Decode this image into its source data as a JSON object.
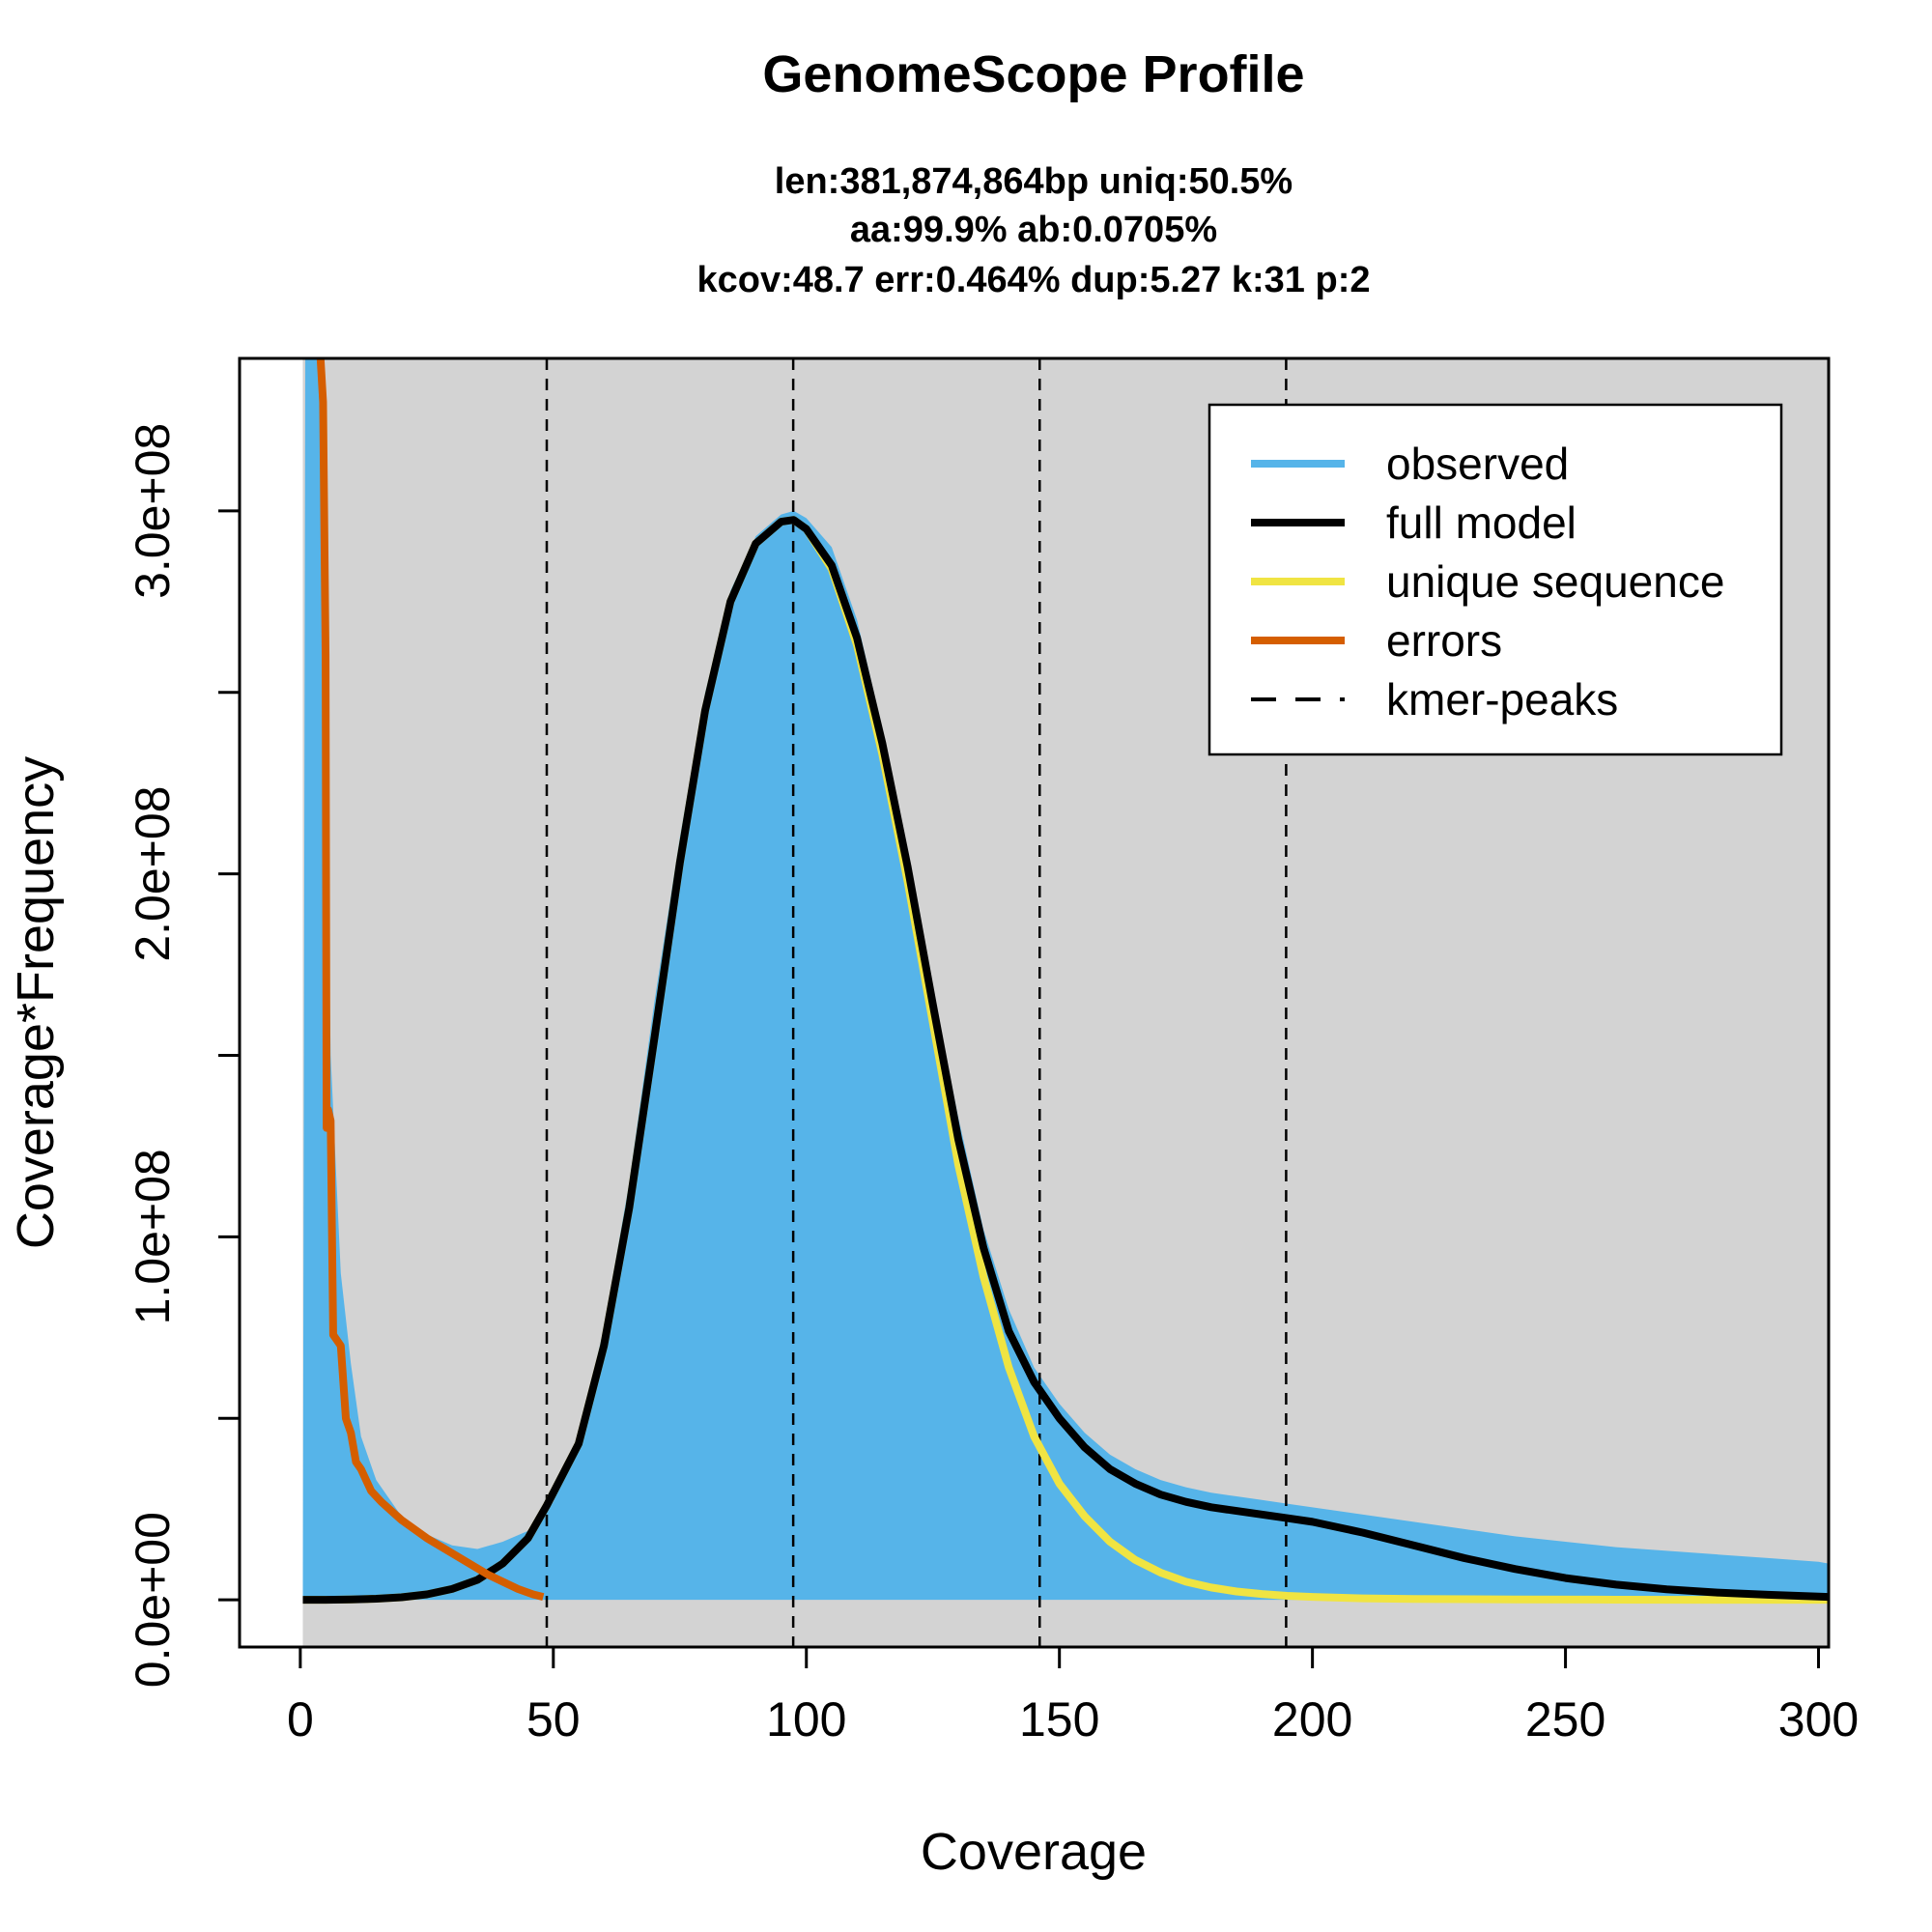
{
  "chart_data": {
    "type": "area",
    "title": "GenomeScope Profile",
    "subtitle_lines": [
      "len:381,874,864bp uniq:50.5%",
      "aa:99.9% ab:0.0705%",
      "kcov:48.7 err:0.464%  dup:5.27  k:31 p:2"
    ],
    "xlabel": "Coverage",
    "ylabel": "Coverage*Frequency",
    "xlim": [
      -12,
      302
    ],
    "ylim": [
      -13000000,
      342000000
    ],
    "x_ticks": [
      0,
      50,
      100,
      150,
      200,
      250,
      300
    ],
    "x_tick_labels": [
      "0",
      "50",
      "100",
      "150",
      "200",
      "250",
      "300"
    ],
    "y_ticks": [
      0,
      50000000,
      100000000,
      150000000,
      200000000,
      250000000,
      300000000
    ],
    "y_tick_labels": [
      "0.0e+00",
      "",
      "1.0e+08",
      "",
      "2.0e+08",
      "",
      "3.0e+08"
    ],
    "kmer_peaks": [
      48.7,
      97.4,
      146.1,
      194.8
    ],
    "colors": {
      "observed": "#56b4e9",
      "full_model": "#000000",
      "unique_sequence": "#f0e442",
      "errors": "#d55e00",
      "panel_background": "#d3d3d3"
    },
    "legend": {
      "position": "top-right",
      "entries": [
        {
          "label": "observed",
          "style": "solid",
          "color": "#56b4e9"
        },
        {
          "label": "full model",
          "style": "solid",
          "color": "#000000"
        },
        {
          "label": "unique sequence",
          "style": "solid",
          "color": "#f0e442"
        },
        {
          "label": "errors",
          "style": "solid",
          "color": "#d55e00"
        },
        {
          "label": "kmer-peaks",
          "style": "dashed",
          "color": "#000000"
        }
      ]
    },
    "series": [
      {
        "name": "observed",
        "x": [
          0.5,
          1,
          1.5,
          2,
          3,
          4,
          5,
          6,
          8,
          10,
          12,
          15,
          20,
          25,
          30,
          35,
          40,
          45,
          50,
          55,
          60,
          65,
          70,
          75,
          80,
          85,
          90,
          95,
          97.5,
          100,
          105,
          110,
          115,
          120,
          125,
          130,
          135,
          140,
          145,
          150,
          155,
          160,
          165,
          170,
          175,
          180,
          185,
          190,
          195,
          200,
          205,
          210,
          220,
          230,
          240,
          250,
          260,
          270,
          280,
          290,
          300,
          302
        ],
        "y": [
          0,
          350000000,
          350000000,
          350000000,
          350000000,
          350000000,
          250000000,
          150000000,
          90000000,
          65000000,
          45000000,
          33000000,
          23000000,
          18000000,
          15000000,
          14000000,
          16000000,
          19000000,
          27000000,
          45000000,
          75000000,
          115000000,
          165000000,
          210000000,
          250000000,
          278000000,
          293000000,
          299000000,
          300000000,
          298000000,
          290000000,
          270000000,
          240000000,
          205000000,
          168000000,
          133000000,
          102000000,
          80000000,
          64000000,
          54000000,
          46000000,
          40000000,
          36000000,
          33000000,
          31000000,
          29500000,
          28500000,
          27500000,
          26500000,
          25500000,
          24500000,
          23500000,
          21500000,
          19500000,
          17500000,
          16000000,
          14500000,
          13500000,
          12500000,
          11500000,
          10500000,
          10000000
        ]
      },
      {
        "name": "full model",
        "x": [
          0.5,
          5,
          10,
          15,
          20,
          25,
          30,
          35,
          40,
          45,
          48.7,
          55,
          60,
          65,
          70,
          75,
          80,
          85,
          90,
          95,
          97.5,
          100,
          105,
          110,
          115,
          120,
          125,
          130,
          135,
          140,
          145,
          150,
          155,
          160,
          165,
          170,
          175,
          180,
          185,
          190,
          195,
          200,
          205,
          210,
          220,
          230,
          240,
          250,
          260,
          270,
          280,
          290,
          300,
          302
        ],
        "y": [
          0,
          0,
          100000,
          300000,
          700000,
          1500000,
          3000000,
          5500000,
          10000000,
          17000000,
          26000000,
          43000000,
          70000000,
          108000000,
          155000000,
          203000000,
          245000000,
          275000000,
          291000000,
          297000000,
          297500000,
          295000000,
          285000000,
          265000000,
          236000000,
          202000000,
          164000000,
          127000000,
          97000000,
          74000000,
          60000000,
          50000000,
          42000000,
          36000000,
          32000000,
          29000000,
          27000000,
          25500000,
          24500000,
          23500000,
          22500000,
          21500000,
          20000000,
          18500000,
          15000000,
          11500000,
          8500000,
          6000000,
          4200000,
          2900000,
          2000000,
          1400000,
          900000,
          800000
        ]
      },
      {
        "name": "unique sequence",
        "x": [
          0.5,
          5,
          10,
          15,
          20,
          25,
          30,
          35,
          40,
          45,
          48.7,
          55,
          60,
          65,
          70,
          75,
          80,
          85,
          90,
          95,
          97.5,
          100,
          105,
          110,
          115,
          120,
          125,
          130,
          135,
          140,
          145,
          150,
          155,
          160,
          165,
          170,
          175,
          180,
          185,
          190,
          195,
          200,
          210,
          220,
          240,
          260,
          280,
          300,
          302
        ],
        "y": [
          0,
          0,
          100000,
          300000,
          700000,
          1500000,
          3000000,
          5500000,
          10000000,
          17000000,
          26000000,
          43000000,
          70000000,
          108000000,
          155000000,
          203000000,
          245000000,
          275000000,
          291000000,
          297000000,
          297500000,
          295000000,
          284000000,
          263000000,
          233000000,
          198000000,
          159000000,
          120000000,
          89000000,
          64000000,
          45000000,
          32000000,
          23000000,
          16000000,
          11000000,
          7500000,
          5000000,
          3400000,
          2300000,
          1600000,
          1100000,
          800000,
          400000,
          250000,
          100000,
          50000,
          20000,
          10000,
          0
        ]
      },
      {
        "name": "errors",
        "x": [
          4,
          4.5,
          5,
          5.2,
          5.5,
          6,
          6.5,
          7,
          8,
          9,
          10,
          11,
          12,
          14,
          16,
          18,
          20,
          22,
          25,
          28,
          31,
          34,
          37,
          40,
          43,
          46,
          48
        ],
        "y": [
          342000000,
          330000000,
          260000000,
          130000000,
          135000000,
          132000000,
          73000000,
          72000000,
          70000000,
          50000000,
          46000000,
          38000000,
          36000000,
          30000000,
          27000000,
          24500000,
          22000000,
          20000000,
          17000000,
          14500000,
          12000000,
          9500000,
          7000000,
          5000000,
          3000000,
          1500000,
          800000
        ]
      }
    ]
  }
}
